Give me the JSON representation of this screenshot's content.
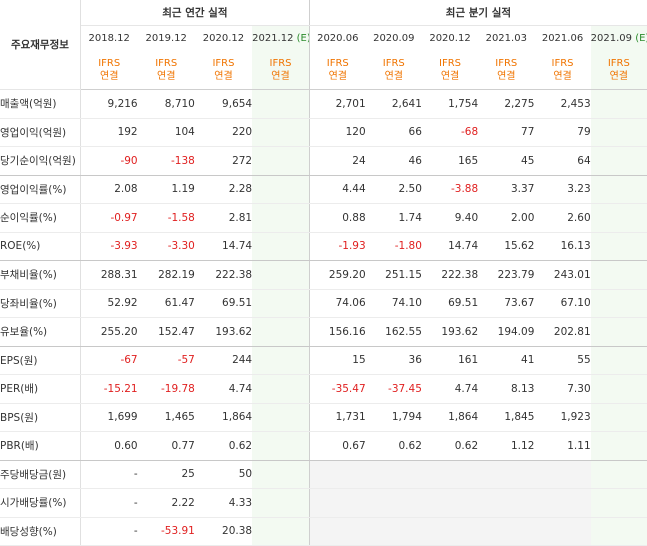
{
  "header": {
    "row_label": "주요재무정보",
    "annual_group": "최근 연간 실적",
    "quarter_group": "최근 분기 실적",
    "annual_periods": [
      "2018.12",
      "2019.12",
      "2020.12",
      "2021.12"
    ],
    "annual_estimate_suffix": "(E)",
    "quarter_periods": [
      "2020.06",
      "2020.09",
      "2020.12",
      "2021.03",
      "2021.06",
      "2021.09"
    ],
    "quarter_estimate_suffix": "(E)",
    "basis_line1": "IFRS",
    "basis_line2": "연결"
  },
  "colors": {
    "accent_orange": "#f07400",
    "negative_red": "#e02020",
    "estimate_bg": "#f3faf2",
    "blank_bg": "#f4f4f4"
  },
  "rows": [
    {
      "label": "매출액(억원)",
      "annual": [
        "9,216",
        "8,710",
        "9,654",
        ""
      ],
      "quarter": [
        "2,701",
        "2,641",
        "1,754",
        "2,275",
        "2,453",
        ""
      ]
    },
    {
      "label": "영업이익(억원)",
      "annual": [
        "192",
        "104",
        "220",
        ""
      ],
      "quarter": [
        "120",
        "66",
        "-68",
        "77",
        "79",
        ""
      ]
    },
    {
      "label": "당기순이익(억원)",
      "annual": [
        "-90",
        "-138",
        "272",
        ""
      ],
      "quarter": [
        "24",
        "46",
        "165",
        "45",
        "64",
        ""
      ]
    },
    {
      "label": "영업이익률(%)",
      "annual": [
        "2.08",
        "1.19",
        "2.28",
        ""
      ],
      "quarter": [
        "4.44",
        "2.50",
        "-3.88",
        "3.37",
        "3.23",
        ""
      ]
    },
    {
      "label": "순이익률(%)",
      "annual": [
        "-0.97",
        "-1.58",
        "2.81",
        ""
      ],
      "quarter": [
        "0.88",
        "1.74",
        "9.40",
        "2.00",
        "2.60",
        ""
      ]
    },
    {
      "label": "ROE(%)",
      "annual": [
        "-3.93",
        "-3.30",
        "14.74",
        ""
      ],
      "quarter": [
        "-1.93",
        "-1.80",
        "14.74",
        "15.62",
        "16.13",
        ""
      ]
    },
    {
      "label": "부채비율(%)",
      "annual": [
        "288.31",
        "282.19",
        "222.38",
        ""
      ],
      "quarter": [
        "259.20",
        "251.15",
        "222.38",
        "223.79",
        "243.01",
        ""
      ]
    },
    {
      "label": "당좌비율(%)",
      "annual": [
        "52.92",
        "61.47",
        "69.51",
        ""
      ],
      "quarter": [
        "74.06",
        "74.10",
        "69.51",
        "73.67",
        "67.10",
        ""
      ]
    },
    {
      "label": "유보율(%)",
      "annual": [
        "255.20",
        "152.47",
        "193.62",
        ""
      ],
      "quarter": [
        "156.16",
        "162.55",
        "193.62",
        "194.09",
        "202.81",
        ""
      ]
    },
    {
      "label": "EPS(원)",
      "annual": [
        "-67",
        "-57",
        "244",
        ""
      ],
      "quarter": [
        "15",
        "36",
        "161",
        "41",
        "55",
        ""
      ]
    },
    {
      "label": "PER(배)",
      "annual": [
        "-15.21",
        "-19.78",
        "4.74",
        ""
      ],
      "quarter": [
        "-35.47",
        "-37.45",
        "4.74",
        "8.13",
        "7.30",
        ""
      ]
    },
    {
      "label": "BPS(원)",
      "annual": [
        "1,699",
        "1,465",
        "1,864",
        ""
      ],
      "quarter": [
        "1,731",
        "1,794",
        "1,864",
        "1,845",
        "1,923",
        ""
      ]
    },
    {
      "label": "PBR(배)",
      "annual": [
        "0.60",
        "0.77",
        "0.62",
        ""
      ],
      "quarter": [
        "0.67",
        "0.62",
        "0.62",
        "1.12",
        "1.11",
        ""
      ]
    },
    {
      "label": "주당배당금(원)",
      "annual": [
        "-",
        "25",
        "50",
        ""
      ],
      "quarter": [
        "",
        "",
        "",
        "",
        "",
        ""
      ]
    },
    {
      "label": "시가배당률(%)",
      "annual": [
        "-",
        "2.22",
        "4.33",
        ""
      ],
      "quarter": [
        "",
        "",
        "",
        "",
        "",
        ""
      ]
    },
    {
      "label": "배당성향(%)",
      "annual": [
        "-",
        "-53.91",
        "20.38",
        ""
      ],
      "quarter": [
        "",
        "",
        "",
        "",
        "",
        ""
      ]
    }
  ]
}
